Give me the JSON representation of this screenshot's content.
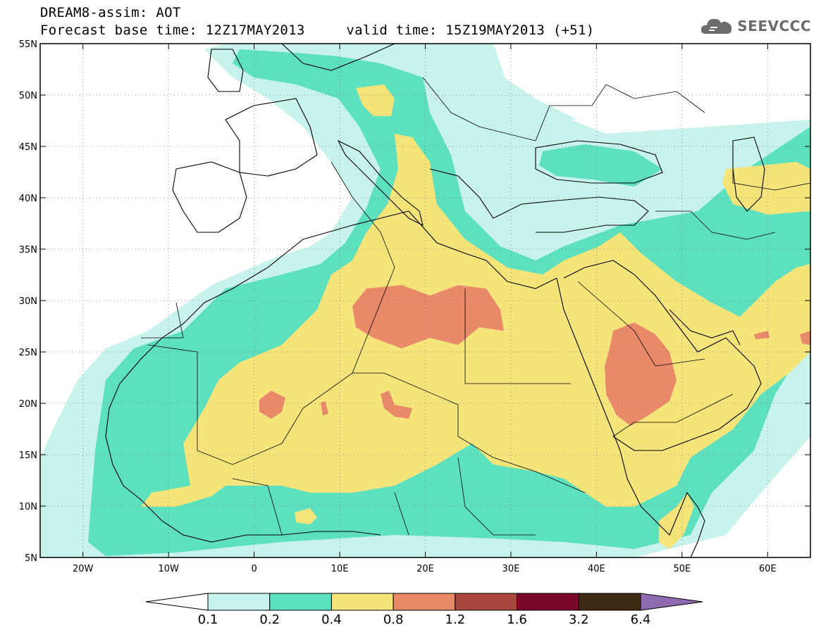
{
  "header": {
    "title": "DREAM8-assim: AOT",
    "base_time_label": "Forecast base time: 12Z17MAY2013",
    "valid_time_label": "valid time: 15Z19MAY2013 (+51)"
  },
  "logo": {
    "text": "SEEVCCC",
    "icon": "cloud-icon"
  },
  "map": {
    "lon_ticks": [
      "20W",
      "10W",
      "0",
      "10E",
      "20E",
      "30E",
      "40E",
      "50E",
      "60E"
    ],
    "lat_ticks": [
      "55N",
      "50N",
      "45N",
      "40N",
      "35N",
      "30N",
      "25N",
      "20N",
      "15N",
      "10N",
      "5N"
    ],
    "lon_range": [
      -25,
      65
    ],
    "lat_range": [
      5,
      55
    ]
  },
  "colorbar": {
    "labels": [
      "0.1",
      "0.2",
      "0.4",
      "0.8",
      "1.2",
      "1.6",
      "3.2",
      "6.4"
    ],
    "colors": [
      "#ffffff",
      "#c8f2ec",
      "#5de0be",
      "#f5e47a",
      "#e88a6a",
      "#a8483c",
      "#7a0828",
      "#3f2a16",
      "#8f6aae"
    ]
  }
}
